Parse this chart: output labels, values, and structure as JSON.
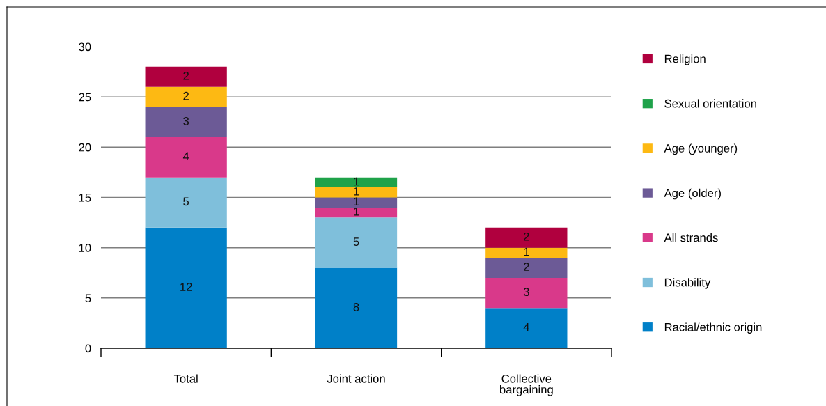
{
  "chart_data": {
    "type": "bar",
    "stacked": true,
    "categories": [
      "Total",
      "Joint action",
      "Collective\nbargaining"
    ],
    "ylim": [
      0,
      30
    ],
    "yticks": [
      0,
      5,
      10,
      15,
      20,
      25,
      30
    ],
    "grid": "y",
    "legend": "right",
    "series": [
      {
        "name": "Racial/ethnic origin",
        "color": "#0080c8",
        "values": [
          12,
          8,
          4
        ],
        "value_labels": [
          "12",
          "8",
          "4"
        ]
      },
      {
        "name": "Disability",
        "color": "#7fbfdb",
        "values": [
          5,
          5,
          0
        ],
        "value_labels": [
          "5",
          "5",
          null
        ]
      },
      {
        "name": "All strands",
        "color": "#d9398a",
        "values": [
          4,
          1,
          3
        ],
        "value_labels": [
          "4",
          "1",
          "3"
        ]
      },
      {
        "name": "Age (older)",
        "color": "#6c5a96",
        "values": [
          3,
          1,
          2
        ],
        "value_labels": [
          "3",
          "1",
          "2"
        ]
      },
      {
        "name": "Age (younger)",
        "color": "#fdb913",
        "values": [
          2,
          1,
          1
        ],
        "value_labels": [
          "2",
          "1",
          "1"
        ]
      },
      {
        "name": "Sexual orientation",
        "color": "#1fa24a",
        "values": [
          0,
          1,
          0
        ],
        "value_labels": [
          null,
          "1",
          null
        ]
      },
      {
        "name": "Religion",
        "color": "#b0003e",
        "values": [
          2,
          0,
          2
        ],
        "value_labels": [
          "2",
          null,
          "2"
        ]
      }
    ]
  }
}
